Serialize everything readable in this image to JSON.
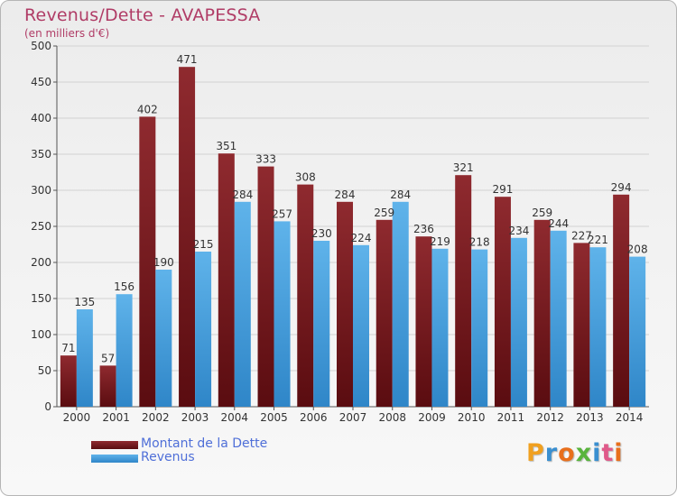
{
  "chart_data": {
    "type": "bar",
    "title": "Revenus/Dette - AVAPESSA",
    "subtitle": "(en milliers d'€)",
    "categories": [
      "2000",
      "2001",
      "2002",
      "2003",
      "2004",
      "2005",
      "2006",
      "2007",
      "2008",
      "2009",
      "2010",
      "2011",
      "2012",
      "2013",
      "2014"
    ],
    "series": [
      {
        "name": "Montant de la Dette",
        "color": "#7a1c22",
        "values": [
          71,
          57,
          402,
          471,
          351,
          333,
          308,
          284,
          259,
          236,
          321,
          291,
          259,
          227,
          294
        ]
      },
      {
        "name": "Revenus",
        "color": "#4aa3e0",
        "values": [
          135,
          156,
          190,
          215,
          284,
          257,
          230,
          224,
          284,
          219,
          218,
          234,
          244,
          221,
          208
        ]
      }
    ],
    "yticks": [
      "0",
      "50",
      "100",
      "150",
      "200",
      "250",
      "300",
      "350",
      "400",
      "450",
      "500"
    ],
    "ylim": [
      0,
      500
    ],
    "grid": true,
    "legend_position": "bottom-left"
  },
  "logo": {
    "text": "Proxiti",
    "colors": [
      "#f0a020",
      "#3a8fd0",
      "#e86f1c",
      "#58b43c",
      "#3a8fd0",
      "#e05a8a",
      "#e86f1c"
    ]
  }
}
